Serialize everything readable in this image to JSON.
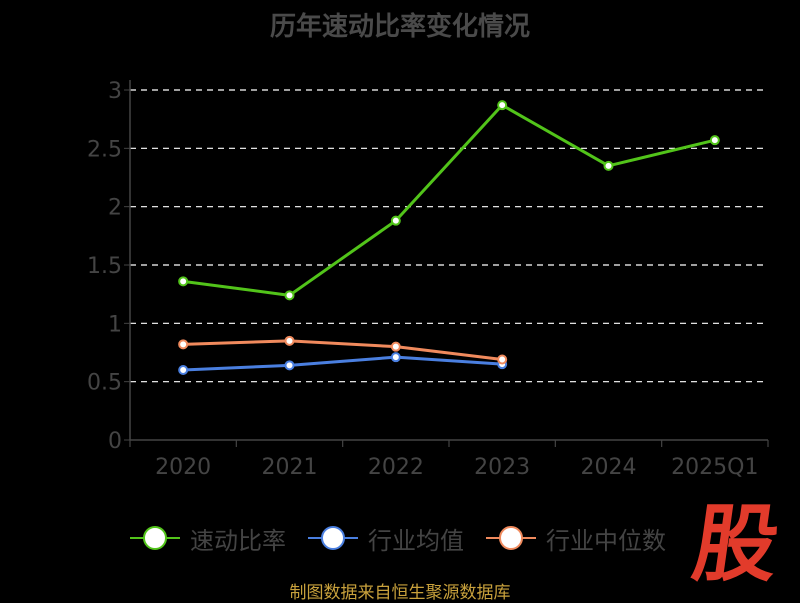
{
  "chart_data": {
    "type": "line",
    "title": "历年速动比率变化情况",
    "categories": [
      "2020",
      "2021",
      "2022",
      "2023",
      "2024",
      "2025Q1"
    ],
    "yticks": [
      "0",
      "0.5",
      "1",
      "1.5",
      "2",
      "2.5",
      "3"
    ],
    "ylim": [
      0,
      3
    ],
    "grid": true,
    "legend_position": "bottom",
    "series": [
      {
        "name": "速动比率",
        "color": "#52c41a",
        "values": [
          1.36,
          1.24,
          1.88,
          2.87,
          2.35,
          2.57
        ]
      },
      {
        "name": "行业均值",
        "color": "#4a7fe0",
        "values": [
          0.6,
          0.64,
          0.71,
          0.65,
          null,
          null
        ]
      },
      {
        "name": "行业中位数",
        "color": "#f08a5d",
        "values": [
          0.82,
          0.85,
          0.8,
          0.69,
          null,
          null
        ]
      }
    ]
  },
  "source": "制图数据来自恒生聚源数据库",
  "logo_text": "股"
}
